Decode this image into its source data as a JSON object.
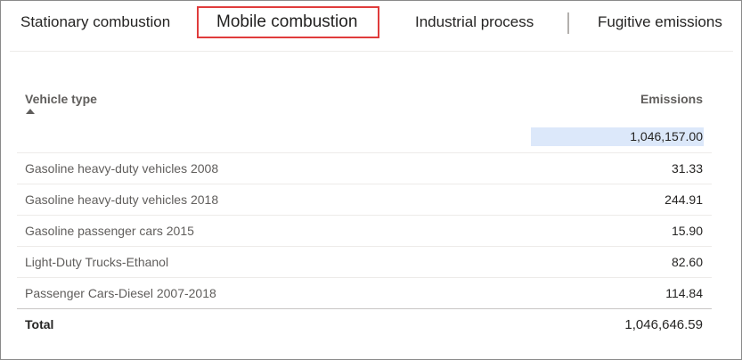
{
  "tabs": {
    "stationary": "Stationary combustion",
    "mobile": "Mobile combustion",
    "industrial": "Industrial process",
    "fugitive": "Fugitive emissions",
    "active": "mobile"
  },
  "table": {
    "headers": {
      "vehicle_type": "Vehicle type",
      "emissions": "Emissions"
    },
    "sort": "ascending",
    "subtotal": "1,046,157.00",
    "rows": [
      {
        "type": "Gasoline heavy-duty vehicles 2008",
        "emissions": "31.33"
      },
      {
        "type": "Gasoline heavy-duty vehicles 2018",
        "emissions": "244.91"
      },
      {
        "type": "Gasoline passenger cars 2015",
        "emissions": "15.90"
      },
      {
        "type": "Light-Duty Trucks-Ethanol",
        "emissions": "82.60"
      },
      {
        "type": "Passenger Cars-Diesel 2007-2018",
        "emissions": "114.84"
      }
    ],
    "total_label": "Total",
    "total_value": "1,046,646.59"
  },
  "colors": {
    "active_tab_border": "#e03c3c",
    "subtotal_highlight": "#dce8fa"
  }
}
